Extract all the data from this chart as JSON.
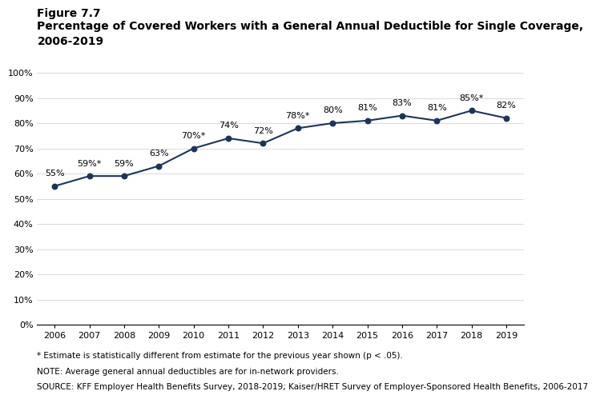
{
  "years": [
    2006,
    2007,
    2008,
    2009,
    2010,
    2011,
    2012,
    2013,
    2014,
    2015,
    2016,
    2017,
    2018,
    2019
  ],
  "values": [
    55,
    59,
    59,
    63,
    70,
    74,
    72,
    78,
    80,
    81,
    83,
    81,
    85,
    82
  ],
  "starred": [
    false,
    true,
    false,
    false,
    true,
    false,
    false,
    true,
    false,
    false,
    false,
    false,
    true,
    false
  ],
  "line_color": "#1c3557",
  "marker_color": "#1c3557",
  "figure_label": "Figure 7.7",
  "title_line1": "Percentage of Covered Workers with a General Annual Deductible for Single Coverage,",
  "title_line2": "2006-2019",
  "ylim": [
    0,
    100
  ],
  "yticks": [
    0,
    10,
    20,
    30,
    40,
    50,
    60,
    70,
    80,
    90,
    100
  ],
  "footnote1": "* Estimate is statistically different from estimate for the previous year shown (p < .05).",
  "footnote2": "NOTE: Average general annual deductibles are for in-network providers.",
  "footnote3": "SOURCE: KFF Employer Health Benefits Survey, 2018-2019; Kaiser/HRET Survey of Employer-Sponsored Health Benefits, 2006-2017",
  "bg_color": "#ffffff",
  "font_color": "#000000",
  "fontsize_figlabel": 10,
  "fontsize_title": 10,
  "fontsize_ticks": 8,
  "fontsize_labels": 8,
  "fontsize_footnote": 7.5
}
